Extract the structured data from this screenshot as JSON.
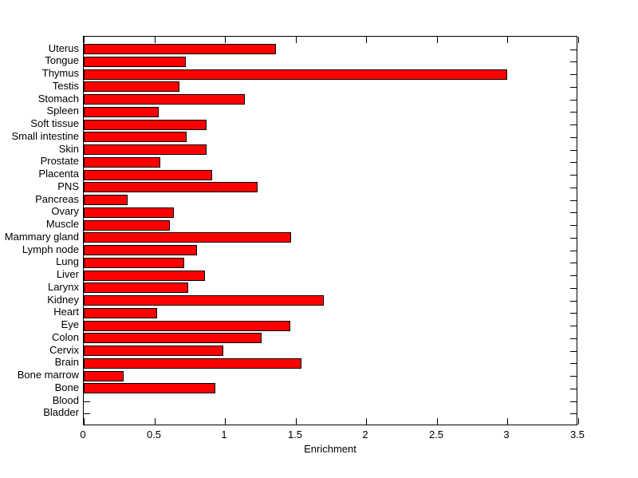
{
  "figure": {
    "background_color": "#ffffff"
  },
  "chart_data": {
    "type": "bar",
    "orientation": "horizontal",
    "title": "",
    "xlabel": "Enrichment",
    "ylabel": "",
    "xlim": [
      0,
      3.5
    ],
    "xticks": [
      0,
      0.5,
      1,
      1.5,
      2,
      2.5,
      3,
      3.5
    ],
    "xtick_labels": [
      "0",
      "0.5",
      "1",
      "1.5",
      "2",
      "2.5",
      "3",
      "3.5"
    ],
    "grid": false,
    "legend_position": "none",
    "bar_color": "#ff0000",
    "bar_edge_color": "#000000",
    "axis_color": "#000000",
    "categories": [
      "Uterus",
      "Tongue",
      "Thymus",
      "Testis",
      "Stomach",
      "Spleen",
      "Soft tissue",
      "Small intestine",
      "Skin",
      "Prostate",
      "Placenta",
      "PNS",
      "Pancreas",
      "Ovary",
      "Muscle",
      "Mammary gland",
      "Lymph node",
      "Lung",
      "Liver",
      "Larynx",
      "Kidney",
      "Heart",
      "Eye",
      "Colon",
      "Cervix",
      "Brain",
      "Bone marrow",
      "Bone",
      "Blood",
      "Bladder"
    ],
    "values": [
      1.36,
      0.72,
      3.0,
      0.68,
      1.14,
      0.53,
      0.87,
      0.73,
      0.87,
      0.54,
      0.91,
      1.23,
      0.31,
      0.64,
      0.61,
      1.47,
      0.8,
      0.71,
      0.86,
      0.74,
      1.7,
      0.52,
      1.46,
      1.26,
      0.99,
      1.54,
      0.28,
      0.93,
      0,
      0
    ]
  }
}
